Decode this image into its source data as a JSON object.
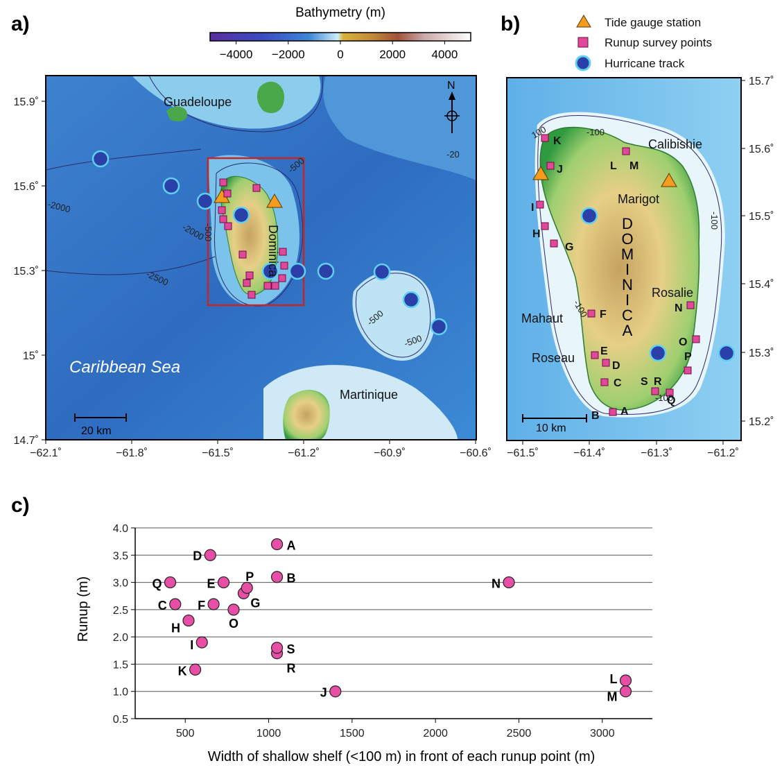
{
  "panels": {
    "a": "a)",
    "b": "b)",
    "c": "c)"
  },
  "colorbar": {
    "title": "Bathymetry (m)",
    "ticks": [
      "−4000",
      "−2000",
      "0",
      "2000",
      "4000"
    ],
    "range": [
      -5000,
      5000
    ]
  },
  "legend": {
    "tide_gauge": "Tide gauge station",
    "runup": "Runup survey points",
    "hurricane": "Hurricane track"
  },
  "map_a": {
    "lon_ticks": [
      "−62.1˚",
      "−61.8˚",
      "−61.5˚",
      "−61.2˚",
      "−60.9˚",
      "−60.6˚"
    ],
    "lat_ticks": [
      "15.9˚",
      "15.6˚",
      "15.3˚",
      "15˚",
      "14.7˚"
    ],
    "places": {
      "guadeloupe": "Guadeloupe",
      "dominica": "Dominica",
      "martinique": "Martinique",
      "sea": "Caribbean Sea"
    },
    "contours": [
      "-2000",
      "-2000",
      "-2500",
      "-500",
      "-500",
      "-500",
      "-500",
      "-20"
    ],
    "north": "N",
    "scale": "20 km"
  },
  "map_b": {
    "lon_ticks": [
      "−61.5˚",
      "−61.4˚",
      "−61.3˚",
      "−61.2˚"
    ],
    "lat_ticks": [
      "15.7˚",
      "15.6˚",
      "15.5˚",
      "15.4˚",
      "15.3˚",
      "15.2˚"
    ],
    "places": {
      "calibishie": "Calibishie",
      "marigot": "Marigot",
      "dominica": "DOMINICA",
      "rosalie": "Rosalie",
      "mahaut": "Mahaut",
      "roseau": "Roseau"
    },
    "contours": [
      "100",
      "-100",
      "-100",
      "-100",
      "-100"
    ],
    "scale": "10 km"
  },
  "chart_data": {
    "type": "scatter",
    "xlabel": "Width of shallow shelf (<100 m) in front of each runup point (m)",
    "ylabel": "Runup (m)",
    "xlim": [
      200,
      3300
    ],
    "ylim": [
      0.5,
      4.0
    ],
    "x_ticks": [
      "500",
      "1000",
      "1500",
      "2000",
      "2500",
      "3000"
    ],
    "y_ticks": [
      "0.5",
      "1.0",
      "1.5",
      "2.0",
      "2.5",
      "3.0",
      "3.5",
      "4.0"
    ],
    "grid": "horizontal",
    "points": [
      {
        "label": "A",
        "x": 1050,
        "y": 3.7
      },
      {
        "label": "B",
        "x": 1050,
        "y": 3.1
      },
      {
        "label": "C",
        "x": 440,
        "y": 2.6
      },
      {
        "label": "D",
        "x": 650,
        "y": 3.5
      },
      {
        "label": "E",
        "x": 730,
        "y": 3.0
      },
      {
        "label": "F",
        "x": 670,
        "y": 2.6
      },
      {
        "label": "G",
        "x": 850,
        "y": 2.8
      },
      {
        "label": "H",
        "x": 520,
        "y": 2.3
      },
      {
        "label": "I",
        "x": 600,
        "y": 1.9
      },
      {
        "label": "J",
        "x": 1400,
        "y": 1.0
      },
      {
        "label": "K",
        "x": 560,
        "y": 1.4
      },
      {
        "label": "L",
        "x": 3140,
        "y": 1.2
      },
      {
        "label": "M",
        "x": 3140,
        "y": 1.0
      },
      {
        "label": "N",
        "x": 2440,
        "y": 3.0
      },
      {
        "label": "O",
        "x": 790,
        "y": 2.5
      },
      {
        "label": "P",
        "x": 870,
        "y": 2.9
      },
      {
        "label": "Q",
        "x": 410,
        "y": 3.0
      },
      {
        "label": "R",
        "x": 1050,
        "y": 1.7
      },
      {
        "label": "S",
        "x": 1050,
        "y": 1.8
      }
    ],
    "marker_color": "#e74fa6"
  },
  "colors": {
    "runup": "#e2489a",
    "tide": "#f39c1e",
    "hurricane": "#2a3fa8",
    "hurricane_edge": "#5fd0f0",
    "frame": "#c0282b"
  }
}
